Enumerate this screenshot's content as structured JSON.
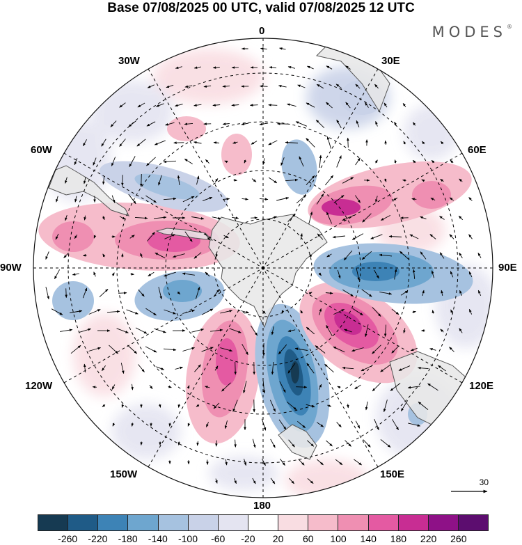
{
  "title": "Base 07/08/2025 00 UTC, valid 07/08/2025 12 UTC",
  "brand": "MODES",
  "brand_mark": "®",
  "longitude_labels": {
    "top": "0",
    "top_right": "30E",
    "right_upper": "60E",
    "right": "90E",
    "right_lower": "120E",
    "bottom_right": "150E",
    "bottom": "180",
    "bottom_left": "150W",
    "left_lower": "120W",
    "left": "90W",
    "left_upper": "60W",
    "top_left": "30W"
  },
  "reference_vector": {
    "label": "30",
    "icon": "arrow-right-icon"
  },
  "colorbar": {
    "colors": [
      "#163a52",
      "#1f5b87",
      "#3d83b6",
      "#6ea6cf",
      "#a6c2e0",
      "#c9d2e8",
      "#e4e4f1",
      "#ffffff",
      "#f9dde2",
      "#f6bccb",
      "#ef8fb2",
      "#e45aa2",
      "#c82d93",
      "#8e1187",
      "#5c0d6f"
    ],
    "ticks": [
      "-260",
      "-220",
      "-180",
      "-140",
      "-100",
      "-60",
      "-20",
      "20",
      "60",
      "100",
      "140",
      "180",
      "220",
      "260"
    ]
  },
  "anomaly_cells": [
    {
      "name": "pos-60w-band",
      "value": 150
    },
    {
      "name": "pos-130w-lobe",
      "value": 170
    },
    {
      "name": "neg-165e-lobe",
      "value": -240
    },
    {
      "name": "pos-120e-lobe",
      "value": 210
    },
    {
      "name": "neg-90e-band",
      "value": -150
    },
    {
      "name": "pos-60e-band",
      "value": 190
    },
    {
      "name": "neg-20e-cell",
      "value": -90
    },
    {
      "name": "neg-45w-band",
      "value": -120
    },
    {
      "name": "neg-100w-cell",
      "value": -130
    },
    {
      "name": "pos-10w-cell",
      "value": 60
    },
    {
      "name": "neg-120w-cell",
      "value": -80
    }
  ]
}
